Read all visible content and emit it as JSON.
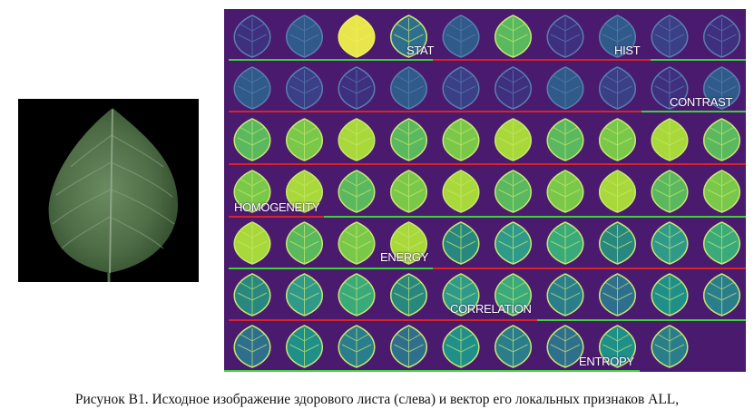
{
  "figure": {
    "left_image": {
      "description_icon": "leaf-photo-icon"
    },
    "feature_groups": [
      {
        "label": "STAT"
      },
      {
        "label": "HIST"
      },
      {
        "label": "CONTRAST"
      },
      {
        "label": "HOMOGENEITY"
      },
      {
        "label": "ENERGY"
      },
      {
        "label": "CORRELATION"
      },
      {
        "label": "ENTROPY"
      }
    ],
    "caption": "Рисунок В1. Исходное изображение здорового листа (слева) и вектор его локальных признаков ALL,"
  },
  "colors": {
    "background": "#4a1a6e",
    "separator_green": "#3dd23a",
    "separator_red": "#d8232a"
  }
}
